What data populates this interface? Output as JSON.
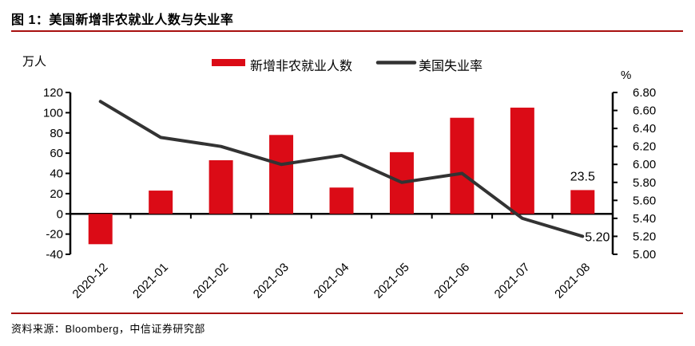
{
  "figure": {
    "title": "图 1：美国新增非农就业人数与失业率",
    "source": "资料来源：Bloomberg，中信证券研究部"
  },
  "colors": {
    "bar": "#DB0B16",
    "line": "#333333",
    "rule": "#A8100F",
    "axis": "#000000",
    "text": "#000000"
  },
  "chart_data": {
    "type": "combo-bar-line",
    "categories": [
      "2020-12",
      "2021-01",
      "2021-02",
      "2021-03",
      "2021-04",
      "2021-05",
      "2021-06",
      "2021-07",
      "2021-08"
    ],
    "series": [
      {
        "name": "新增非农就业人数",
        "type": "bar",
        "axis": "left",
        "values": [
          -30,
          23,
          53,
          78,
          26,
          61,
          95,
          105,
          23.5
        ]
      },
      {
        "name": "美国失业率",
        "type": "line",
        "axis": "right",
        "values": [
          6.7,
          6.3,
          6.2,
          6.0,
          6.1,
          5.8,
          5.9,
          5.4,
          5.2
        ]
      }
    ],
    "left_axis": {
      "title": "万人",
      "min": -40,
      "max": 120,
      "step": 20,
      "decimals": 0
    },
    "right_axis": {
      "title": "%",
      "min": 5.0,
      "max": 6.8,
      "step": 0.2,
      "decimals": 2
    },
    "data_labels": [
      {
        "series": 0,
        "index": 8,
        "text": "23.5"
      },
      {
        "series": 1,
        "index": 8,
        "text": "5.20"
      }
    ],
    "legend_position": "top",
    "grid": false
  }
}
